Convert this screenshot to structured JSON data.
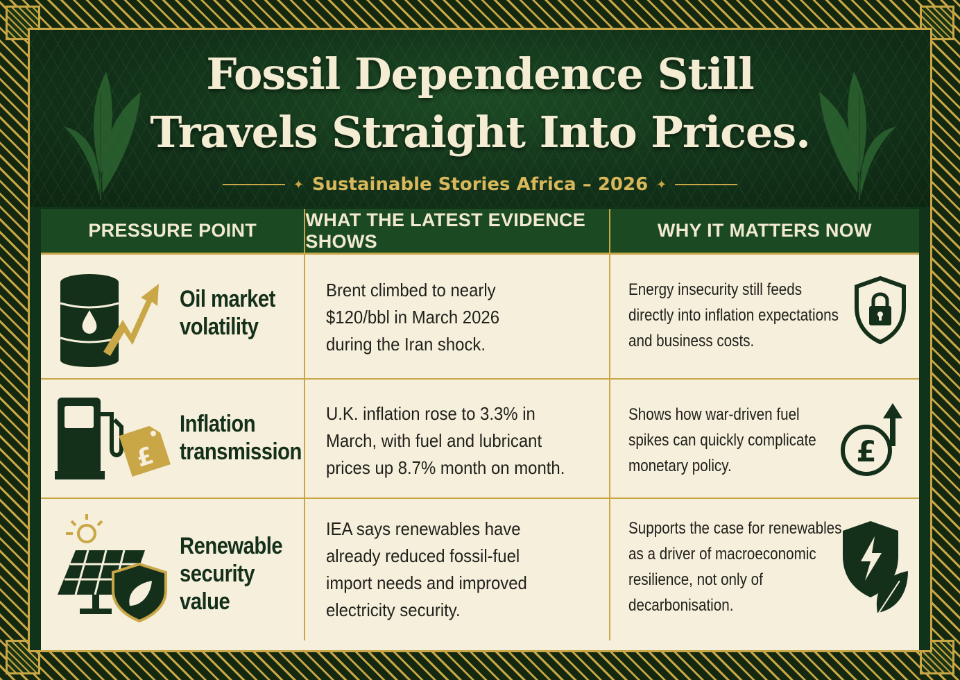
{
  "title": {
    "line1": "Fossil Dependence Still",
    "line2": "Travels Straight Into Prices."
  },
  "subtitle": "Sustainable Stories Africa – 2026",
  "table": {
    "headers": [
      "PRESSURE POINT",
      "WHAT THE LATEST EVIDENCE SHOWS",
      "WHY IT MATTERS NOW"
    ],
    "rows": [
      {
        "pressure_line1": "Oil market",
        "pressure_line2": "volatility",
        "pressure_icon": "oil-barrel-rising-arrow-icon",
        "evidence_lines": [
          "Brent climbed to nearly",
          "$120/bbl in March 2026",
          "during the Iran shock."
        ],
        "why_lines": [
          "Energy insecurity still feeds",
          "directly into inflation expectations",
          "and business costs."
        ],
        "why_icon": "shield-lock-icon"
      },
      {
        "pressure_line1": "Inflation",
        "pressure_line2": "transmission",
        "pressure_icon": "fuel-pump-price-tag-icon",
        "evidence_lines": [
          "U.K. inflation rose to 3.3% in",
          "March, with fuel and lubricant",
          "prices up 8.7% month on month."
        ],
        "why_lines": [
          "Shows how war-driven fuel",
          "spikes can quickly complicate",
          "monetary policy."
        ],
        "why_icon": "pound-rising-arrow-icon"
      },
      {
        "pressure_line1": "Renewable",
        "pressure_line2": "security value",
        "pressure_icon": "solar-panel-shield-leaf-icon",
        "evidence_lines": [
          "IEA says renewables have",
          "already reduced fossil-fuel",
          "import needs and improved",
          "electricity security."
        ],
        "why_lines": [
          "Supports the case for renewables",
          "as a driver of macroeconomic",
          "resilience, not only of",
          "decarbonisation."
        ],
        "why_icon": "shield-bolt-leaf-icon"
      }
    ]
  },
  "colors": {
    "dark_green": "#14301a",
    "gold": "#c9a646",
    "cream": "#f6efdc",
    "header_green": "#1b4a22"
  }
}
